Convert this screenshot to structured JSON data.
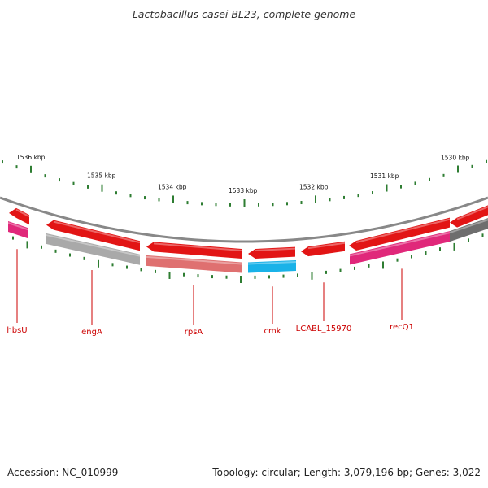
{
  "title": "Lactobacillus casei BL23, complete genome",
  "footer": {
    "accession": "Accession: NC_010999",
    "summary": "Topology: circular; Length: 3,079,196 bp; Genes: 3,022"
  },
  "colors": {
    "label": "#cc0000",
    "tick": "#2e7d32",
    "backbone": "#888888",
    "cds": "#ee1111",
    "gene_red": "#e21515",
    "gene_magenta": "#e0287a",
    "gene_grey": "#a9a9a9",
    "gene_salmon": "#df7070",
    "gene_cyan": "#19b2e8",
    "gene_darkgrey": "#6e6e6e"
  },
  "scale": {
    "unit": "kbp",
    "labels": [
      "1536 kbp",
      "1535 kbp",
      "1534 kbp",
      "1533 kbp",
      "1532 kbp",
      "1531 kbp",
      "1530 kbp"
    ]
  },
  "genes": [
    {
      "name": "hbsU",
      "color_key": "gene_magenta"
    },
    {
      "name": "engA",
      "color_key": "gene_grey"
    },
    {
      "name": "rpsA",
      "color_key": "gene_salmon"
    },
    {
      "name": "cmk",
      "color_key": "gene_cyan"
    },
    {
      "name": "LCABL_15970",
      "color_key": ""
    },
    {
      "name": "recQ1",
      "color_key": "gene_magenta"
    }
  ]
}
